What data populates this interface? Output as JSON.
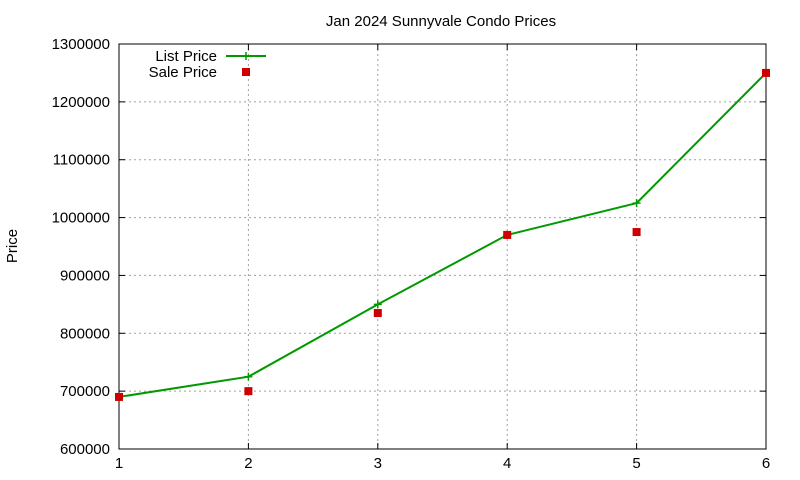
{
  "chart_data": {
    "type": "line",
    "title": "Jan 2024 Sunnyvale Condo Prices",
    "xlabel": "",
    "ylabel": "Price",
    "xlim": [
      1,
      6
    ],
    "ylim": [
      600000,
      1300000
    ],
    "x_ticks": [
      "1",
      "2",
      "3",
      "4",
      "5",
      "6"
    ],
    "y_ticks": [
      "600000",
      "700000",
      "800000",
      "900000",
      "1000000",
      "1100000",
      "1200000",
      "1300000"
    ],
    "grid": true,
    "legend_position": "top-left",
    "x": [
      1,
      2,
      3,
      4,
      5,
      6
    ],
    "series": [
      {
        "name": "List Price",
        "style": "line-points",
        "color": "#009900",
        "marker": "plus",
        "values": [
          690000,
          725000,
          850000,
          970000,
          1025000,
          1250000
        ]
      },
      {
        "name": "Sale Price",
        "style": "points",
        "color": "#cc0000",
        "marker": "square",
        "values": [
          690000,
          700000,
          835000,
          970000,
          975000,
          1250000
        ]
      }
    ]
  }
}
